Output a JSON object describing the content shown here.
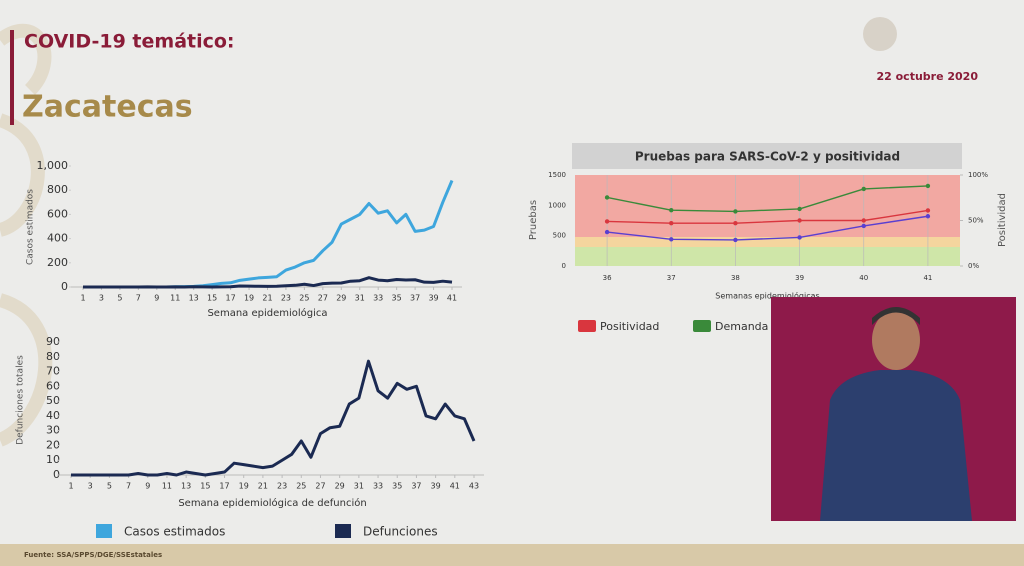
{
  "header": {
    "title": "COVID-19 temático:",
    "subtitle": "Zacatecas",
    "date": "22 octubre 2020"
  },
  "footer": "Fuente: SSA/SPPS/DGE/SSEstatales",
  "chart_data": [
    {
      "type": "line",
      "xlabel": "Semana epidemiológica",
      "ylabel": "Casos estimados",
      "x": [
        1,
        2,
        3,
        4,
        5,
        6,
        7,
        8,
        9,
        10,
        11,
        12,
        13,
        14,
        15,
        16,
        17,
        18,
        19,
        20,
        21,
        22,
        23,
        24,
        25,
        26,
        27,
        28,
        29,
        30,
        31,
        32,
        33,
        34,
        35,
        36,
        37,
        38,
        39,
        40,
        41
      ],
      "xlim": [
        1,
        41
      ],
      "xticks": [
        1,
        3,
        5,
        7,
        9,
        11,
        13,
        15,
        17,
        19,
        21,
        23,
        25,
        27,
        29,
        31,
        33,
        35,
        37,
        39,
        41
      ],
      "ylim": [
        0,
        1000
      ],
      "yticks": [
        0,
        200,
        400,
        600,
        800,
        {
          "value": 1000,
          "label": "1,000"
        }
      ],
      "series": [
        {
          "name": "Casos estimados",
          "color": "#3ea6dd",
          "values": [
            0,
            0,
            0,
            0,
            0,
            0,
            0,
            0,
            0,
            0,
            2,
            3,
            5,
            10,
            20,
            30,
            35,
            55,
            65,
            75,
            80,
            85,
            140,
            165,
            200,
            220,
            300,
            370,
            520,
            560,
            600,
            690,
            610,
            630,
            530,
            600,
            460,
            470,
            500,
            700,
            880
          ]
        },
        {
          "name": "Defunciones",
          "color": "#1b2a52",
          "values": [
            0,
            0,
            0,
            0,
            0,
            0,
            0,
            1,
            0,
            0,
            1,
            0,
            2,
            1,
            0,
            1,
            2,
            8,
            7,
            6,
            5,
            6,
            10,
            14,
            23,
            12,
            28,
            32,
            33,
            48,
            52,
            77,
            57,
            52,
            62,
            58,
            60,
            40,
            38,
            48,
            40
          ]
        }
      ]
    },
    {
      "type": "line",
      "xlabel": "Semana epidemiológica de defunción",
      "ylabel": "Defunciones totales",
      "x": [
        1,
        2,
        3,
        4,
        5,
        6,
        7,
        8,
        9,
        10,
        11,
        12,
        13,
        14,
        15,
        16,
        17,
        18,
        19,
        20,
        21,
        22,
        23,
        24,
        25,
        26,
        27,
        28,
        29,
        30,
        31,
        32,
        33,
        34,
        35,
        36,
        37,
        38,
        39,
        40,
        41,
        42,
        43
      ],
      "xlim": [
        1,
        43
      ],
      "xticks": [
        1,
        3,
        5,
        7,
        9,
        11,
        13,
        15,
        17,
        19,
        21,
        23,
        25,
        27,
        29,
        31,
        33,
        35,
        37,
        39,
        41,
        43
      ],
      "ylim": [
        0,
        90
      ],
      "yticks": [
        0,
        10,
        20,
        30,
        40,
        50,
        60,
        70,
        80,
        90
      ],
      "series": [
        {
          "color": "#1b2a52",
          "values": [
            0,
            0,
            0,
            0,
            0,
            0,
            0,
            1,
            0,
            0,
            1,
            0,
            2,
            1,
            0,
            1,
            2,
            8,
            7,
            6,
            5,
            6,
            10,
            14,
            23,
            12,
            28,
            32,
            33,
            48,
            52,
            77,
            57,
            52,
            62,
            58,
            60,
            40,
            38,
            48,
            40,
            38,
            23
          ]
        }
      ]
    },
    {
      "type": "line",
      "title": "Pruebas para SARS-CoV-2 y positividad",
      "xlabel": "Semanas epidemiológicas",
      "ylabel": "Pruebas",
      "y2label": "Positividad",
      "grid": true,
      "categories": [
        "36",
        "37",
        "38",
        "39",
        "40",
        "41"
      ],
      "ylim": [
        0,
        1500
      ],
      "yticks": [
        0,
        500,
        1000,
        1500
      ],
      "y2lim": [
        0,
        100
      ],
      "y2ticks": [
        {
          "value": 0,
          "label": "0%"
        },
        {
          "value": 50,
          "label": "50%"
        },
        {
          "value": 100,
          "label": "100%"
        }
      ],
      "series": [
        {
          "name": "Positividad",
          "color": "#d9363e",
          "axis": "y2",
          "values": [
            49,
            47,
            47,
            50,
            50,
            61
          ]
        },
        {
          "name": "Demanda",
          "color": "#3a8a3a",
          "values": [
            1130,
            920,
            900,
            940,
            1270,
            1320
          ]
        },
        {
          "color": "#5a3fd0",
          "values": [
            560,
            440,
            430,
            470,
            660,
            820
          ]
        }
      ]
    }
  ]
}
